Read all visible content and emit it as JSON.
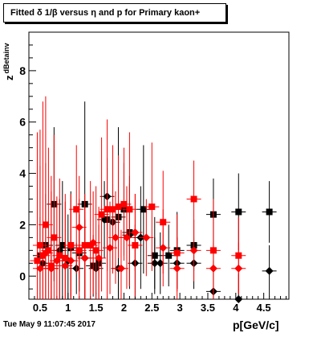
{
  "title": "Fitted δ 1/β versus η and p for Primary kaon+",
  "footer": "Tue May  9 11:07:45 2017",
  "chart_data": {
    "type": "scatter",
    "title": "Fitted δ 1/β versus η and p for Primary kaon+",
    "xlabel": "p[GeV/c]",
    "ylabel_main": "z",
    "ylabel_sub": "dBetainv",
    "xlim": [
      0.3,
      4.95
    ],
    "ylim": [
      -0.9,
      9.5
    ],
    "x_ticks": [
      0.5,
      1,
      1.5,
      2,
      2.5,
      3,
      3.5,
      4,
      4.5
    ],
    "x_tick_labels": [
      "0.5",
      "1",
      "1.5",
      "2",
      "2.5",
      "3",
      "3.5",
      "4",
      "4.5"
    ],
    "y_ticks": [
      0,
      2,
      4,
      6,
      8
    ],
    "y_tick_labels": [
      "0",
      "2",
      "4",
      "6",
      "8"
    ],
    "grid": false,
    "series": [
      {
        "marker": "square",
        "color": "#000000",
        "points": [
          {
            "x": 0.5,
            "y": 0.8,
            "err": 1.5
          },
          {
            "x": 0.6,
            "y": 1.2,
            "err": 2.0
          },
          {
            "x": 0.75,
            "y": 2.8,
            "err": 3.0
          },
          {
            "x": 0.9,
            "y": 1.2,
            "err": 2.5
          },
          {
            "x": 1.05,
            "y": 1.1,
            "err": 2.2
          },
          {
            "x": 1.2,
            "y": 0.9,
            "err": 1.5
          },
          {
            "x": 1.3,
            "y": 2.8,
            "err": 4.0
          },
          {
            "x": 1.45,
            "y": 0.4,
            "err": 1.2
          },
          {
            "x": 1.55,
            "y": 0.5,
            "err": 1.5
          },
          {
            "x": 1.7,
            "y": 2.2,
            "err": 2.0
          },
          {
            "x": 1.9,
            "y": 2.3,
            "err": 3.5
          },
          {
            "x": 2.0,
            "y": 2.6,
            "err": 1.8
          },
          {
            "x": 2.1,
            "y": 1.7,
            "err": 2.2
          },
          {
            "x": 2.35,
            "y": 2.6,
            "err": 2.5
          },
          {
            "x": 2.55,
            "y": 0.8,
            "err": 1.5
          },
          {
            "x": 2.8,
            "y": 0.8,
            "err": 1.2
          },
          {
            "x": 2.95,
            "y": 1.0,
            "err": 1.5
          },
          {
            "x": 3.25,
            "y": 1.2,
            "err": 1.0
          },
          {
            "x": 3.6,
            "y": 2.4,
            "err": 1.4
          },
          {
            "x": 4.05,
            "y": 2.5,
            "err": 1.5
          },
          {
            "x": 4.6,
            "y": 2.5,
            "err": 1.2
          }
        ]
      },
      {
        "marker": "diamond",
        "color": "#000000",
        "points": [
          {
            "x": 0.55,
            "y": 0.5,
            "err": 1.5
          },
          {
            "x": 0.7,
            "y": 0.3,
            "err": 1.2
          },
          {
            "x": 0.85,
            "y": 1.0,
            "err": 2.0
          },
          {
            "x": 1.0,
            "y": 0.6,
            "err": 1.8
          },
          {
            "x": 1.15,
            "y": 0.3,
            "err": 1.0
          },
          {
            "x": 1.3,
            "y": 0.7,
            "err": 1.5
          },
          {
            "x": 1.5,
            "y": 0.3,
            "err": 1.0
          },
          {
            "x": 1.65,
            "y": 2.2,
            "err": 1.5
          },
          {
            "x": 1.7,
            "y": 3.1,
            "err": 1.5
          },
          {
            "x": 1.8,
            "y": 2.1,
            "err": 1.5
          },
          {
            "x": 1.9,
            "y": 0.3,
            "err": 1.2
          },
          {
            "x": 2.1,
            "y": 1.6,
            "err": 2.0
          },
          {
            "x": 2.2,
            "y": 0.5,
            "err": 1.5
          },
          {
            "x": 2.3,
            "y": 1.5,
            "err": 2.0
          },
          {
            "x": 2.55,
            "y": 0.5,
            "err": 1.0
          },
          {
            "x": 2.65,
            "y": 0.5,
            "err": 1.2
          },
          {
            "x": 2.95,
            "y": 0.5,
            "err": 1.0
          },
          {
            "x": 3.25,
            "y": 0.5,
            "err": 1.0
          },
          {
            "x": 3.6,
            "y": -0.6,
            "err": 1.2
          },
          {
            "x": 4.05,
            "y": -0.9,
            "err": 1.0
          },
          {
            "x": 4.6,
            "y": 0.2,
            "err": 1.0
          }
        ]
      },
      {
        "marker": "square",
        "color": "#ff0000",
        "points": [
          {
            "x": 0.45,
            "y": 0.6,
            "err": 5.0
          },
          {
            "x": 0.5,
            "y": 1.2,
            "err": 4.5
          },
          {
            "x": 0.55,
            "y": 0.8,
            "err": 6.0
          },
          {
            "x": 0.6,
            "y": 2.0,
            "err": 5.0
          },
          {
            "x": 0.65,
            "y": 1.0,
            "err": 4.0
          },
          {
            "x": 0.7,
            "y": 0.4,
            "err": 3.5
          },
          {
            "x": 0.75,
            "y": 1.5,
            "err": 4.0
          },
          {
            "x": 0.85,
            "y": 0.8,
            "err": 3.0
          },
          {
            "x": 0.95,
            "y": 0.7,
            "err": 2.5
          },
          {
            "x": 1.05,
            "y": 1.2,
            "err": 2.0
          },
          {
            "x": 1.15,
            "y": 2.6,
            "err": 2.5
          },
          {
            "x": 1.2,
            "y": 1.0,
            "err": 2.0
          },
          {
            "x": 1.3,
            "y": 1.2,
            "err": 2.0
          },
          {
            "x": 1.4,
            "y": 1.2,
            "err": 2.5
          },
          {
            "x": 1.5,
            "y": 1.0,
            "err": 2.5
          },
          {
            "x": 1.6,
            "y": 2.4,
            "err": 3.0
          },
          {
            "x": 1.7,
            "y": 2.6,
            "err": 3.5
          },
          {
            "x": 1.8,
            "y": 2.6,
            "err": 2.5
          },
          {
            "x": 1.9,
            "y": 2.7,
            "err": 2.0
          },
          {
            "x": 2.0,
            "y": 2.8,
            "err": 2.2
          },
          {
            "x": 2.1,
            "y": 2.6,
            "err": 3.0
          },
          {
            "x": 2.2,
            "y": 1.2,
            "err": 2.0
          },
          {
            "x": 2.5,
            "y": 2.7,
            "err": 2.5
          },
          {
            "x": 2.7,
            "y": 2.1,
            "err": 2.0
          },
          {
            "x": 2.95,
            "y": 0.9,
            "err": 1.5
          },
          {
            "x": 3.25,
            "y": 3.0,
            "err": 1.5
          },
          {
            "x": 3.6,
            "y": 1.0,
            "err": 2.0
          },
          {
            "x": 4.05,
            "y": 0.8,
            "err": 1.5
          }
        ]
      },
      {
        "marker": "diamond",
        "color": "#ff0000",
        "points": [
          {
            "x": 0.5,
            "y": 0.3,
            "err": 4.0
          },
          {
            "x": 0.6,
            "y": 0.9,
            "err": 3.5
          },
          {
            "x": 0.7,
            "y": 0.3,
            "err": 3.0
          },
          {
            "x": 0.8,
            "y": 0.6,
            "err": 2.5
          },
          {
            "x": 0.95,
            "y": 0.4,
            "err": 2.5
          },
          {
            "x": 1.05,
            "y": 0.6,
            "err": 2.0
          },
          {
            "x": 1.2,
            "y": 1.9,
            "err": 2.0
          },
          {
            "x": 1.3,
            "y": 0.7,
            "err": 2.0
          },
          {
            "x": 1.45,
            "y": 1.3,
            "err": 2.0
          },
          {
            "x": 1.55,
            "y": 0.7,
            "err": 2.0
          },
          {
            "x": 1.75,
            "y": 1.1,
            "err": 1.8
          },
          {
            "x": 1.85,
            "y": 1.5,
            "err": 1.8
          },
          {
            "x": 1.95,
            "y": 0.3,
            "err": 1.5
          },
          {
            "x": 2.05,
            "y": 1.5,
            "err": 2.0
          },
          {
            "x": 2.2,
            "y": 1.7,
            "err": 1.5
          },
          {
            "x": 2.4,
            "y": 1.5,
            "err": 1.5
          },
          {
            "x": 2.7,
            "y": 1.1,
            "err": 1.5
          },
          {
            "x": 2.95,
            "y": 0.3,
            "err": 1.2
          },
          {
            "x": 3.25,
            "y": 1.0,
            "err": 1.2
          },
          {
            "x": 3.6,
            "y": 0.3,
            "err": 1.0
          },
          {
            "x": 4.05,
            "y": 0.3,
            "err": 1.0
          }
        ]
      }
    ]
  }
}
